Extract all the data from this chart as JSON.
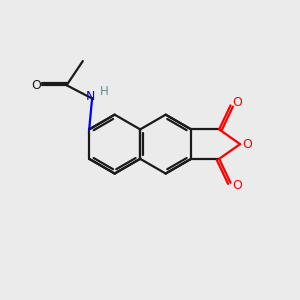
{
  "background_color": "#ebebeb",
  "bond_color": "#1a1a1a",
  "oxygen_color": "#ff0000",
  "nitrogen_color": "#0000ff",
  "hydrogen_color": "#5f9090",
  "line_width": 1.6,
  "figsize": [
    3.0,
    3.0
  ],
  "dpi": 100,
  "xlim": [
    0,
    10
  ],
  "ylim": [
    0,
    10
  ]
}
